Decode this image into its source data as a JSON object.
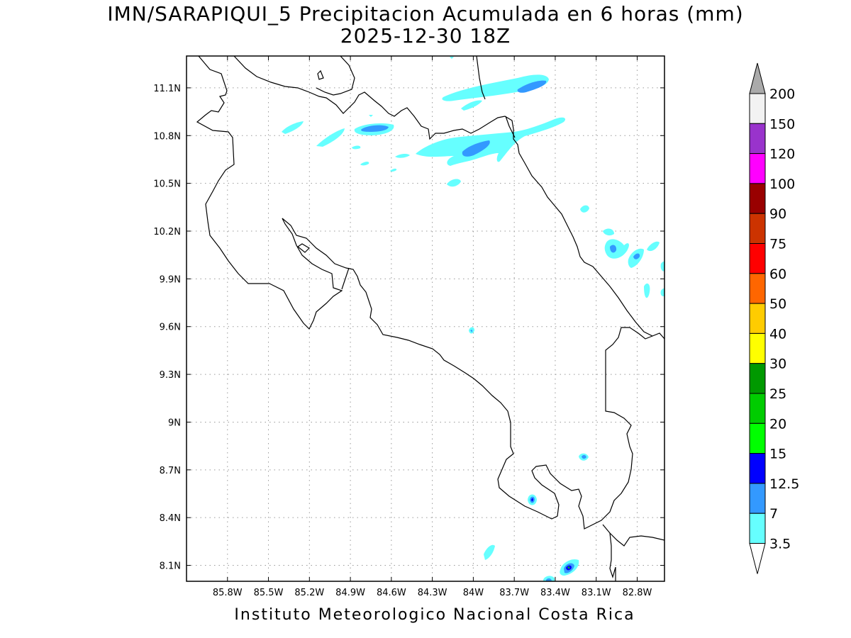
{
  "title": {
    "line1": "IMN/SARAPIQUI_5 Precipitacion Acumulada en 6 horas (mm)",
    "line2": "2025-12-30 18Z"
  },
  "footer": "Instituto Meteorologico Nacional Costa Rica",
  "map": {
    "lon_range": [
      -86.1,
      -82.6
    ],
    "lat_range": [
      8.0,
      11.3
    ],
    "x_ticks": [
      "85.8W",
      "85.5W",
      "85.2W",
      "84.9W",
      "84.6W",
      "84.3W",
      "84W",
      "83.7W",
      "83.4W",
      "83.1W",
      "82.8W"
    ],
    "x_tick_values": [
      -85.8,
      -85.5,
      -85.2,
      -84.9,
      -84.6,
      -84.3,
      -84.0,
      -83.7,
      -83.4,
      -83.1,
      -82.8
    ],
    "y_ticks": [
      "11.1N",
      "10.8N",
      "10.5N",
      "10.2N",
      "9.9N",
      "9.6N",
      "9.3N",
      "9N",
      "8.7N",
      "8.4N",
      "8.1N"
    ],
    "y_tick_values": [
      11.1,
      10.8,
      10.5,
      10.2,
      9.9,
      9.6,
      9.3,
      9.0,
      8.7,
      8.4,
      8.1
    ],
    "grid": true
  },
  "colorbar": {
    "labels": [
      "3.5",
      "7",
      "12.5",
      "15",
      "20",
      "25",
      "30",
      "40",
      "50",
      "60",
      "75",
      "90",
      "100",
      "120",
      "150",
      "200"
    ],
    "colors": [
      "#66ffff",
      "#3399ff",
      "#0000ff",
      "#00ff00",
      "#00cc00",
      "#009900",
      "#ffff00",
      "#ffcc00",
      "#ff6600",
      "#ff0000",
      "#cc3300",
      "#990000",
      "#ff00ff",
      "#9933cc",
      "#f2f2f2",
      "#aaaaaa"
    ]
  },
  "colors": {
    "light_precip": "#66ffff",
    "moderate_precip": "#3399ff",
    "heavy_precip": "#0000ff"
  }
}
